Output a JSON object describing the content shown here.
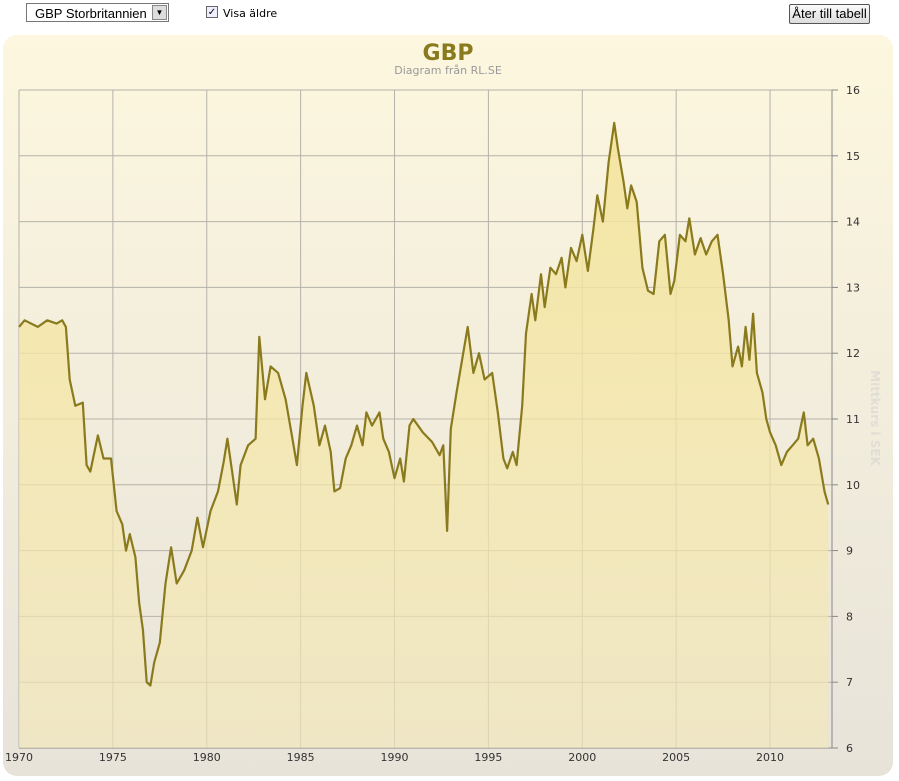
{
  "controls": {
    "select": "GBP Storbritannien",
    "checkbox": "Visa äldre",
    "checkbox_checked": true,
    "button": "Åter till tabell"
  },
  "chart_data": {
    "type": "line",
    "title": "GBP",
    "subtitle": "Diagram från RL.SE",
    "y_label": "Mittkurs i SEK",
    "x": [
      1970.0,
      1970.3,
      1971,
      1971.5,
      1972,
      1972.3,
      1972.5,
      1972.7,
      1973,
      1973.4,
      1973.6,
      1973.8,
      1974.2,
      1974.5,
      1974.9,
      1975.2,
      1975.5,
      1975.7,
      1975.9,
      1976.2,
      1976.4,
      1976.6,
      1976.8,
      1977,
      1977.2,
      1977.5,
      1977.8,
      1978.1,
      1978.4,
      1978.8,
      1979.2,
      1979.5,
      1979.8,
      1980.2,
      1980.6,
      1980.9,
      1981.1,
      1981.3,
      1981.6,
      1981.8,
      1982.2,
      1982.6,
      1982.8,
      1983.1,
      1983.4,
      1983.8,
      1984.2,
      1984.5,
      1984.8,
      1985.1,
      1985.3,
      1985.7,
      1986,
      1986.3,
      1986.6,
      1986.8,
      1987.1,
      1987.4,
      1987.7,
      1988,
      1988.3,
      1988.5,
      1988.8,
      1989.2,
      1989.4,
      1989.7,
      1990,
      1990.3,
      1990.5,
      1990.8,
      1991,
      1991.5,
      1992,
      1992.4,
      1992.6,
      1992.8,
      1993,
      1993.3,
      1993.6,
      1993.9,
      1994.2,
      1994.5,
      1994.8,
      1995.2,
      1995.5,
      1995.8,
      1996,
      1996.3,
      1996.5,
      1996.8,
      1997,
      1997.3,
      1997.5,
      1997.8,
      1998,
      1998.3,
      1998.6,
      1998.9,
      1999.1,
      1999.4,
      1999.7,
      2000,
      2000.3,
      2000.6,
      2000.8,
      2001.1,
      2001.4,
      2001.7,
      2001.9,
      2002.2,
      2002.4,
      2002.6,
      2002.9,
      2003.2,
      2003.5,
      2003.8,
      2004.1,
      2004.4,
      2004.7,
      2004.9,
      2005.2,
      2005.5,
      2005.7,
      2006,
      2006.3,
      2006.6,
      2006.9,
      2007.2,
      2007.5,
      2007.8,
      2008,
      2008.3,
      2008.5,
      2008.7,
      2008.9,
      2009.1,
      2009.3,
      2009.6,
      2009.8,
      2010,
      2010.3,
      2010.6,
      2010.9,
      2011.2,
      2011.5,
      2011.8,
      2012,
      2012.3,
      2012.6,
      2012.9,
      2013.1
    ],
    "series": [
      {
        "color": "#8a7a1e",
        "fill": "#f2e4a0",
        "values": [
          12.4,
          12.5,
          12.4,
          12.5,
          12.45,
          12.5,
          12.4,
          11.6,
          11.2,
          11.25,
          10.3,
          10.2,
          10.75,
          10.4,
          10.4,
          9.6,
          9.4,
          9.0,
          9.25,
          8.9,
          8.2,
          7.8,
          7.0,
          6.95,
          7.3,
          7.6,
          8.5,
          9.05,
          8.5,
          8.7,
          9.0,
          9.5,
          9.05,
          9.6,
          9.9,
          10.35,
          10.7,
          10.3,
          9.7,
          10.3,
          10.6,
          10.7,
          12.25,
          11.3,
          11.8,
          11.7,
          11.3,
          10.8,
          10.3,
          11.2,
          11.7,
          11.2,
          10.6,
          10.9,
          10.5,
          9.9,
          9.95,
          10.4,
          10.6,
          10.9,
          10.6,
          11.1,
          10.9,
          11.1,
          10.7,
          10.5,
          10.1,
          10.4,
          10.05,
          10.9,
          11.0,
          10.8,
          10.65,
          10.45,
          10.6,
          9.3,
          10.85,
          11.4,
          11.9,
          12.4,
          11.7,
          12.0,
          11.6,
          11.7,
          11.1,
          10.4,
          10.25,
          10.5,
          10.3,
          11.2,
          12.3,
          12.9,
          12.5,
          13.2,
          12.7,
          13.3,
          13.2,
          13.45,
          13.0,
          13.6,
          13.4,
          13.8,
          13.25,
          13.9,
          14.4,
          14.0,
          14.9,
          15.5,
          15.1,
          14.6,
          14.2,
          14.55,
          14.3,
          13.3,
          12.95,
          12.9,
          13.7,
          13.8,
          12.9,
          13.1,
          13.8,
          13.7,
          14.05,
          13.5,
          13.75,
          13.5,
          13.7,
          13.8,
          13.2,
          12.5,
          11.8,
          12.1,
          11.8,
          12.4,
          11.9,
          12.6,
          11.7,
          11.4,
          11.0,
          10.8,
          10.6,
          10.3,
          10.5,
          10.6,
          10.7,
          11.1,
          10.6,
          10.7,
          10.4,
          9.9,
          9.7
        ]
      }
    ],
    "xlim": [
      1970,
      2013.3
    ],
    "xticks": [
      1970,
      1975,
      1980,
      1985,
      1990,
      1995,
      2000,
      2005,
      2010
    ],
    "ylim": [
      6,
      16
    ],
    "yticks": [
      6,
      7,
      8,
      9,
      10,
      11,
      12,
      13,
      14,
      15,
      16
    ],
    "grid": true
  }
}
